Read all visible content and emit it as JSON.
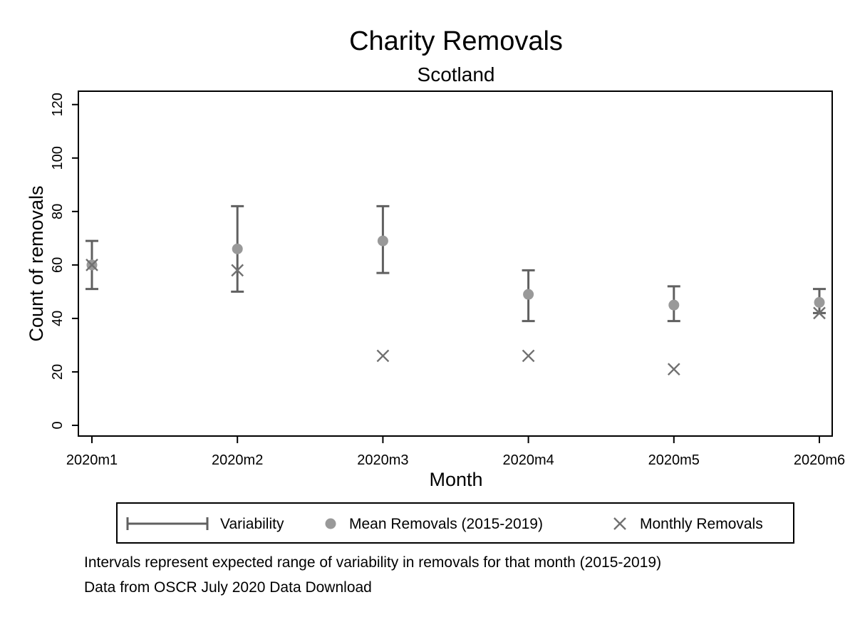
{
  "chart_data": {
    "type": "scatter",
    "title": "Charity Removals",
    "subtitle": "Scotland",
    "xlabel": "Month",
    "ylabel": "Count of removals",
    "categories": [
      "2020m1",
      "2020m2",
      "2020m3",
      "2020m4",
      "2020m5",
      "2020m6"
    ],
    "y_ticks": [
      "0",
      "20",
      "40",
      "60",
      "80",
      "100",
      "120"
    ],
    "ylim": [
      -4,
      125
    ],
    "series": [
      {
        "name": "Variability",
        "kind": "range",
        "low": [
          51,
          50,
          57,
          39,
          39,
          42
        ],
        "high": [
          69,
          82,
          82,
          58,
          52,
          51
        ]
      },
      {
        "name": "Mean Removals (2015-2019)",
        "kind": "point",
        "values": [
          60,
          66,
          69,
          49,
          45,
          46
        ]
      },
      {
        "name": "Monthly Removals",
        "kind": "cross",
        "values": [
          60,
          58,
          26,
          26,
          21,
          42
        ]
      }
    ],
    "legend_position": "bottom",
    "notes": [
      "Intervals represent expected range of variability in removals for that month (2015-2019)",
      "Data from OSCR July 2020 Data Download"
    ],
    "colors": {
      "interval": "#606060",
      "mean_point": "#999999",
      "cross": "#707070",
      "axis": "#000000"
    }
  }
}
